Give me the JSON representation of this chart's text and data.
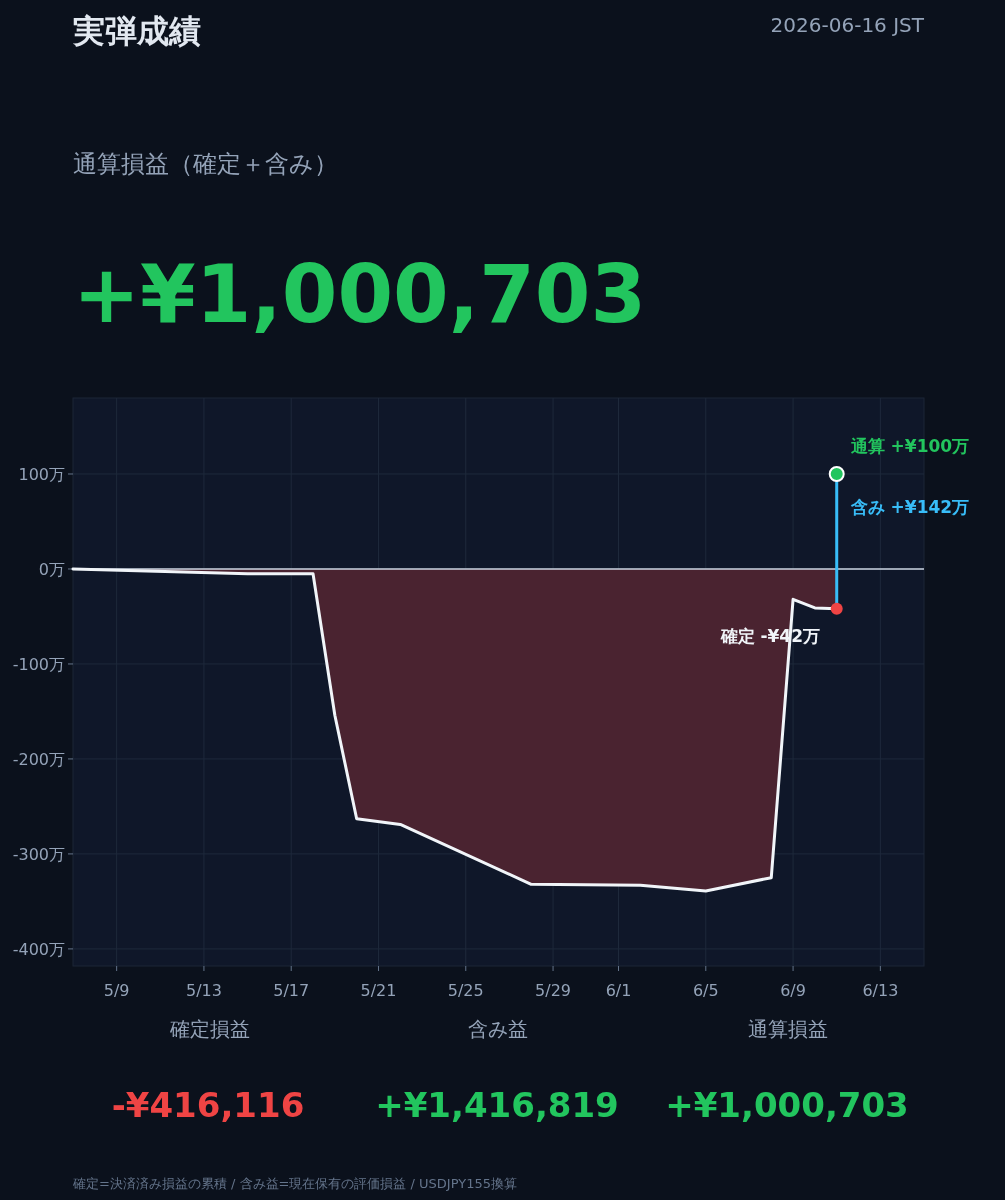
{
  "chart_data": {
    "type": "area",
    "title": "実弾成績",
    "subtitle": "2026-06-16 JST",
    "annotations": [
      "通算損益（確定＋含み）",
      "+¥1,000,703",
      "確定 -¥42万",
      "確定損益",
      "含み益",
      "通算損益",
      "-¥416,116",
      "+¥1,416,819",
      "+¥1,000,703",
      "確定=決済済み損益の累積 / 含み益=現在保有の評価損益 / USDJPY155換算"
    ],
    "series": [
      {
        "color": "#4a2330",
        "x": [
          "2026-05-07",
          "2026-05-15",
          "2026-05-18",
          "2026-05-19",
          "2026-05-20",
          "2026-05-22",
          "2026-05-28",
          "2026-06-02",
          "2026-06-05",
          "2026-06-08",
          "2026-06-09",
          "2026-06-10",
          "2026-06-11"
        ],
        "values": [
          0,
          -5,
          -5,
          -154,
          -263,
          -269,
          -332,
          -333,
          -339,
          -325,
          -32,
          -41,
          -42
        ]
      },
      {
        "type": "line",
        "name": "含み +¥142万",
        "color": "#38bdf8",
        "x": [
          "2026-06-11",
          "2026-06-11"
        ],
        "values": [
          -42,
          100
        ]
      },
      {
        "type": "scatter",
        "color": "#ef4444",
        "x": [
          "2026-06-11"
        ],
        "values": [
          -42
        ]
      },
      {
        "type": "scatter",
        "name": "通算 +¥100万",
        "color": "#22c55e",
        "x": [
          "2026-06-11"
        ],
        "values": [
          100
        ]
      }
    ],
    "xlim": [
      "2026-05-07",
      "2026-06-15"
    ],
    "xticks": [
      {
        "value": "2026-05-09",
        "label": "5/9"
      },
      {
        "value": "2026-05-13",
        "label": "5/13"
      },
      {
        "value": "2026-05-17",
        "label": "5/17"
      },
      {
        "value": "2026-05-21",
        "label": "5/21"
      },
      {
        "value": "2026-05-25",
        "label": "5/25"
      },
      {
        "value": "2026-05-29",
        "label": "5/29"
      },
      {
        "value": "2026-06-01",
        "label": "6/1"
      },
      {
        "value": "2026-06-05",
        "label": "6/5"
      },
      {
        "value": "2026-06-09",
        "label": "6/9"
      },
      {
        "value": "2026-06-13",
        "label": "6/13"
      }
    ],
    "ylim": [
      -418,
      180
    ],
    "yticks": [
      {
        "value": 100,
        "label": "100万"
      },
      {
        "value": 0,
        "label": "0万"
      },
      {
        "value": -100,
        "label": "-100万"
      },
      {
        "value": -200,
        "label": "-200万"
      },
      {
        "value": -300,
        "label": "-300万"
      },
      {
        "value": -400,
        "label": "-400万"
      }
    ],
    "ref_lines": [
      {
        "axis": "y",
        "value": 0,
        "color": "#cbd5e1"
      }
    ],
    "grid": true
  }
}
